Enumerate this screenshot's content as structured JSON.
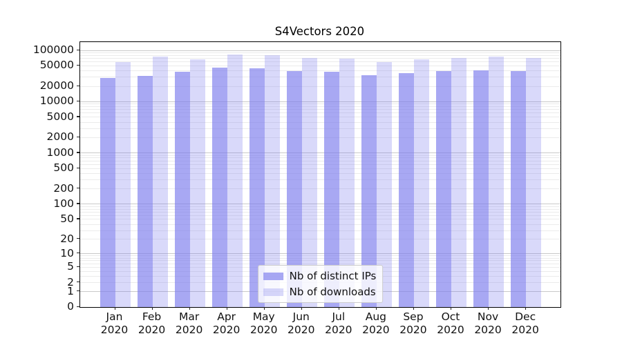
{
  "chart_data": {
    "type": "bar",
    "title": "S4Vectors 2020",
    "categories": [
      "Jan\n2020",
      "Feb\n2020",
      "Mar\n2020",
      "Apr\n2020",
      "May\n2020",
      "Jun\n2020",
      "Jul\n2020",
      "Aug\n2020",
      "Sep\n2020",
      "Oct\n2020",
      "Nov\n2020",
      "Dec\n2020"
    ],
    "series": [
      {
        "name": "Nb of distinct IPs",
        "color": "#7b7bed",
        "opacity": 0.66,
        "values": [
          29000,
          31500,
          38000,
          46000,
          45000,
          40000,
          38000,
          33000,
          36000,
          39500,
          40500,
          40000
        ]
      },
      {
        "name": "Nb of downloads",
        "color": "#7b7bed",
        "opacity": 0.29,
        "values": [
          59000,
          76000,
          66500,
          83000,
          81000,
          71000,
          69000,
          59000,
          66500,
          71000,
          76000,
          71000
        ]
      }
    ],
    "y_axis": {
      "scale": "log1p",
      "ticks": [
        0,
        1,
        2,
        5,
        10,
        20,
        50,
        100,
        200,
        500,
        1000,
        2000,
        5000,
        10000,
        20000,
        50000,
        100000
      ],
      "max": 145000
    },
    "grid": true,
    "legend_position": "lower center"
  },
  "colors": {
    "grid_major": "#c9c9c9",
    "grid_minor": "#ebebeb",
    "spine": "#000000",
    "background": "#ffffff"
  }
}
